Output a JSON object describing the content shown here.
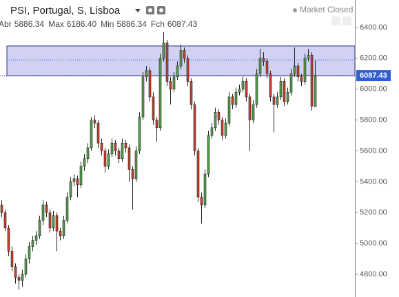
{
  "chart_data": {
    "type": "candlestick",
    "title": "PSI, Portugal, S, Lisboa",
    "status": "Market Closed",
    "ohlc_legend": [
      {
        "label": "Abr",
        "value": "5886.34"
      },
      {
        "label": "Max",
        "value": "6186.40"
      },
      {
        "label": "Min",
        "value": "5886.34"
      },
      {
        "label": "Fch",
        "value": "6087.43"
      }
    ],
    "up_color": "#53a04e",
    "down_color": "#c8412f",
    "open": [
      5250,
      5200,
      5100,
      4950,
      4850,
      4780,
      4760,
      4800,
      4900,
      4980,
      5020,
      5050,
      5150,
      5250,
      5200,
      5100,
      5180,
      5080,
      5050,
      5150,
      5300,
      5400,
      5420,
      5380,
      5500,
      5550,
      5620,
      5800,
      5780,
      5650,
      5600,
      5500,
      5580,
      5650,
      5600,
      5550,
      5650,
      5620,
      5480,
      5420,
      5600,
      5820,
      6080,
      6120,
      5950,
      5800,
      5750,
      6200,
      6300,
      6050,
      6000,
      6080,
      6150,
      6250,
      6200,
      6050,
      5900,
      5600,
      5300,
      5250,
      5450,
      5700,
      5750,
      5850,
      5800,
      5700,
      5780,
      5950,
      5900,
      5980,
      6000,
      6050,
      5950,
      5800,
      5900,
      6100,
      6200,
      6180,
      6100,
      5950,
      5900,
      5950,
      6050,
      5920,
      5980,
      6100,
      6150,
      6080,
      6050,
      6200,
      6220,
      5886.34
    ],
    "high": [
      5280,
      5220,
      5120,
      4980,
      4870,
      4800,
      4830,
      4930,
      5010,
      5050,
      5080,
      5180,
      5280,
      5270,
      5220,
      5210,
      5200,
      5100,
      5180,
      5330,
      5430,
      5450,
      5440,
      5530,
      5580,
      5650,
      5820,
      5830,
      5800,
      5680,
      5620,
      5610,
      5680,
      5670,
      5620,
      5680,
      5670,
      5640,
      5500,
      5630,
      5850,
      6110,
      6150,
      6140,
      5980,
      5820,
      6230,
      6370,
      6320,
      6080,
      6110,
      6180,
      6290,
      6270,
      6220,
      6070,
      5920,
      5620,
      5330,
      5480,
      5730,
      5780,
      5880,
      5870,
      5820,
      5810,
      5980,
      5970,
      6010,
      6030,
      6080,
      6070,
      5970,
      5930,
      6130,
      6260,
      6240,
      6200,
      6120,
      5970,
      5980,
      6080,
      6070,
      6010,
      6130,
      6270,
      6170,
      6100,
      6230,
      6260,
      6240,
      6186.4
    ],
    "low": [
      5170,
      5080,
      4920,
      4820,
      4740,
      4700,
      4720,
      4780,
      4870,
      4950,
      4990,
      5030,
      5120,
      5170,
      5070,
      5080,
      4950,
      5020,
      5030,
      5130,
      5280,
      5370,
      5300,
      5360,
      5470,
      5520,
      5600,
      5750,
      5620,
      5570,
      5460,
      5480,
      5560,
      5570,
      5520,
      5530,
      5590,
      5400,
      5220,
      5400,
      5580,
      5800,
      6050,
      5920,
      5770,
      5660,
      5730,
      6180,
      6020,
      5900,
      5980,
      6060,
      6130,
      6170,
      6020,
      5870,
      5570,
      5270,
      5130,
      5230,
      5430,
      5680,
      5730,
      5770,
      5670,
      5680,
      5760,
      5870,
      5880,
      5960,
      5980,
      5920,
      5600,
      5780,
      5880,
      6080,
      6150,
      6070,
      5920,
      5720,
      5880,
      5930,
      5890,
      5900,
      5960,
      6080,
      6050,
      6020,
      6030,
      6180,
      5860,
      5886.34
    ],
    "close": [
      5200,
      5100,
      4950,
      4850,
      4780,
      4760,
      4800,
      4900,
      4980,
      5020,
      5050,
      5150,
      5250,
      5200,
      5100,
      5180,
      5080,
      5050,
      5150,
      5300,
      5400,
      5420,
      5380,
      5500,
      5550,
      5620,
      5800,
      5780,
      5650,
      5600,
      5500,
      5580,
      5650,
      5600,
      5550,
      5650,
      5620,
      5480,
      5420,
      5600,
      5820,
      6080,
      6120,
      5950,
      5800,
      5750,
      6200,
      6300,
      6050,
      6000,
      6080,
      6150,
      6250,
      6200,
      6050,
      5900,
      5600,
      5300,
      5250,
      5450,
      5700,
      5750,
      5850,
      5800,
      5700,
      5780,
      5950,
      5900,
      5980,
      6000,
      6050,
      5950,
      5800,
      5900,
      6100,
      6200,
      6180,
      6100,
      5950,
      5900,
      5950,
      6050,
      5920,
      5980,
      6100,
      6150,
      6080,
      6050,
      6200,
      6220,
      5890,
      6087.43
    ],
    "highlight_range": [
      6087.43,
      6280
    ],
    "guide_lines": [
      6190
    ],
    "last_price": 6087.43,
    "ylim": [
      4653,
      6578
    ],
    "yticks": [
      {
        "value": 4800,
        "label": "4800.00"
      },
      {
        "value": 5000,
        "label": "5000.00"
      },
      {
        "value": 5200,
        "label": "5200.00"
      },
      {
        "value": 5400,
        "label": "5400.00"
      },
      {
        "value": 5600,
        "label": "5600.00"
      },
      {
        "value": 5800,
        "label": "5800.00"
      },
      {
        "value": 6000,
        "label": "6000.00"
      },
      {
        "value": 6200,
        "label": "6200.00"
      },
      {
        "value": 6400,
        "label": "6400.00"
      }
    ]
  }
}
